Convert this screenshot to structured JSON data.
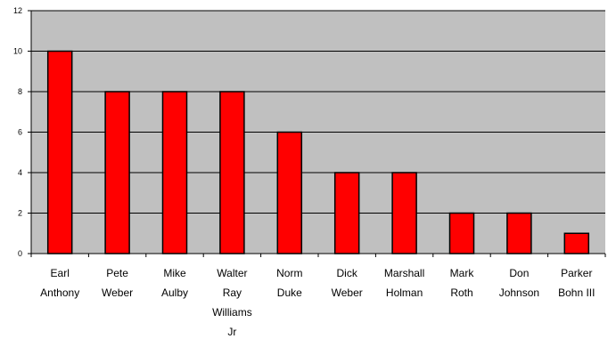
{
  "chart_data": {
    "type": "bar",
    "title": "",
    "xlabel": "",
    "ylabel": "",
    "categories": [
      [
        "Earl",
        "Anthony"
      ],
      [
        "Pete",
        "Weber"
      ],
      [
        "Mike",
        "Aulby"
      ],
      [
        "Walter",
        "Ray",
        "Williams",
        "Jr"
      ],
      [
        "Norm",
        "Duke"
      ],
      [
        "Dick",
        "Weber"
      ],
      [
        "Marshall",
        "Holman"
      ],
      [
        "Mark",
        "Roth"
      ],
      [
        "Don",
        "Johnson"
      ],
      [
        "Parker",
        "Bohn III"
      ]
    ],
    "values": [
      10,
      8,
      8,
      8,
      6,
      4,
      4,
      2,
      2,
      1
    ],
    "ylim": [
      0,
      12
    ],
    "yticks": [
      0,
      2,
      4,
      6,
      8,
      10,
      12
    ],
    "grid": true,
    "legend": "none",
    "colors": {
      "plot_background": "#c0c0c0",
      "bar_fill": "#ff0000",
      "bar_stroke": "#000000",
      "gridline": "#000000"
    }
  }
}
